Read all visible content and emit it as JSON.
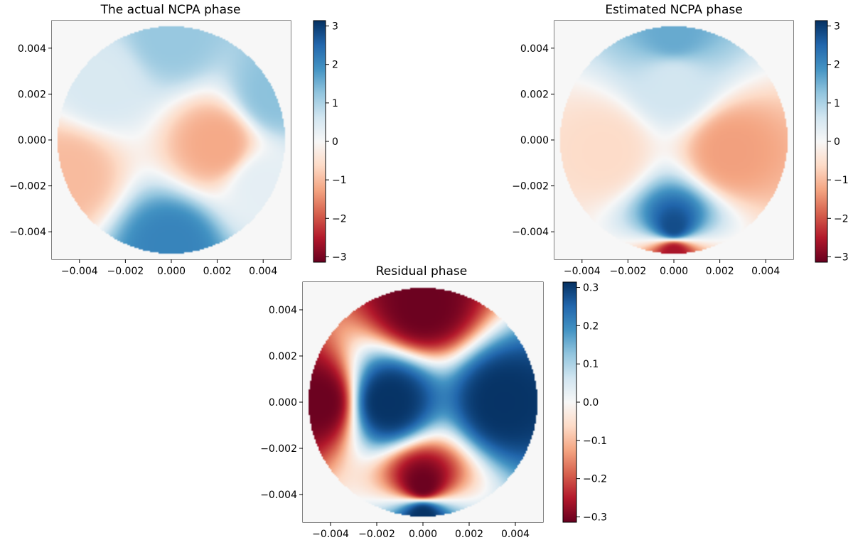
{
  "chart_data": [
    {
      "type": "heatmap",
      "title": "The actual NCPA phase",
      "colormap": "RdBu",
      "aperture": "circular pupil",
      "xlim": [
        -0.0052,
        0.0052
      ],
      "ylim": [
        -0.0052,
        0.0052
      ],
      "xticks": [
        -0.004,
        -0.002,
        0.0,
        0.002,
        0.004
      ],
      "xtick_labels": [
        "−0.004",
        "−0.002",
        "0.000",
        "0.002",
        "0.004"
      ],
      "yticks": [
        0.004,
        0.002,
        0.0,
        -0.002,
        -0.004
      ],
      "ytick_labels": [
        "0.004",
        "0.002",
        "0.000",
        "−0.002",
        "−0.004"
      ],
      "colorbar": {
        "range": [
          -3.14,
          3.14
        ],
        "ticks": [
          3,
          2,
          1,
          0,
          -1,
          -2,
          -3
        ],
        "tick_labels": [
          "3",
          "2",
          "1",
          "0",
          "−1",
          "−2",
          "−3"
        ]
      },
      "pattern": [
        {
          "x": 0.0,
          "y": 0.0046,
          "value": 1.2
        },
        {
          "x": 0.0,
          "y": -0.0046,
          "value": 2.1
        },
        {
          "x": 0.002,
          "y": -0.0002,
          "value": -1.2
        },
        {
          "x": -0.0045,
          "y": -0.0015,
          "value": -1.0
        },
        {
          "x": -0.003,
          "y": 0.0025,
          "value": 0.5
        },
        {
          "x": 0.0045,
          "y": 0.002,
          "value": 1.3
        },
        {
          "x": 0.004,
          "y": -0.002,
          "value": 0.3
        }
      ]
    },
    {
      "type": "heatmap",
      "title": "Estimated NCPA phase",
      "colormap": "RdBu",
      "aperture": "circular pupil",
      "xlim": [
        -0.0052,
        0.0052
      ],
      "ylim": [
        -0.0052,
        0.0052
      ],
      "xticks": [
        -0.004,
        -0.002,
        0.0,
        0.002,
        0.004
      ],
      "xtick_labels": [
        "−0.004",
        "−0.002",
        "0.000",
        "0.002",
        "0.004"
      ],
      "yticks": [
        0.004,
        0.002,
        0.0,
        -0.002,
        -0.004
      ],
      "ytick_labels": [
        "0.004",
        "0.002",
        "0.000",
        "−0.002",
        "−0.004"
      ],
      "colorbar": {
        "range": [
          -3.14,
          3.14
        ],
        "ticks": [
          3,
          2,
          1,
          0,
          -1,
          -2,
          -3
        ],
        "tick_labels": [
          "3",
          "2",
          "1",
          "0",
          "−1",
          "−2",
          "−3"
        ]
      },
      "pattern": [
        {
          "x": 0.0,
          "y": 0.0046,
          "value": 1.6
        },
        {
          "x": 0.0,
          "y": 0.0025,
          "value": 0.6
        },
        {
          "x": 0.0025,
          "y": -0.0005,
          "value": -1.3
        },
        {
          "x": -0.003,
          "y": -0.0005,
          "value": -0.6
        },
        {
          "x": 0.0,
          "y": -0.0038,
          "value": 2.8
        },
        {
          "x": 0.0,
          "y": -0.0049,
          "value": -2.6
        }
      ]
    },
    {
      "type": "heatmap",
      "title": "Residual phase",
      "colormap": "RdBu",
      "aperture": "circular pupil",
      "xlim": [
        -0.0052,
        0.0052
      ],
      "ylim": [
        -0.0052,
        0.0052
      ],
      "xticks": [
        -0.004,
        -0.002,
        0.0,
        0.002,
        0.004
      ],
      "xtick_labels": [
        "−0.004",
        "−0.002",
        "0.000",
        "0.002",
        "0.004"
      ],
      "yticks": [
        0.004,
        0.002,
        0.0,
        -0.002,
        -0.004
      ],
      "ytick_labels": [
        "0.004",
        "0.002",
        "0.000",
        "−0.002",
        "−0.004"
      ],
      "colorbar": {
        "range": [
          -0.314,
          0.314
        ],
        "ticks": [
          0.3,
          0.2,
          0.1,
          0.0,
          -0.1,
          -0.2,
          -0.3
        ],
        "tick_labels": [
          "0.3",
          "0.2",
          "0.1",
          "0.0",
          "−0.1",
          "−0.2",
          "−0.3"
        ]
      },
      "pattern": [
        {
          "x": -0.0015,
          "y": 0.0,
          "value": 0.31
        },
        {
          "x": 0.0035,
          "y": 0.0,
          "value": 0.31
        },
        {
          "x": 0.0,
          "y": 0.0042,
          "value": -0.31
        },
        {
          "x": 0.0,
          "y": -0.0036,
          "value": -0.31
        },
        {
          "x": -0.0045,
          "y": 0.0,
          "value": -0.31
        },
        {
          "x": 0.0,
          "y": -0.0049,
          "value": 0.31
        }
      ]
    }
  ]
}
